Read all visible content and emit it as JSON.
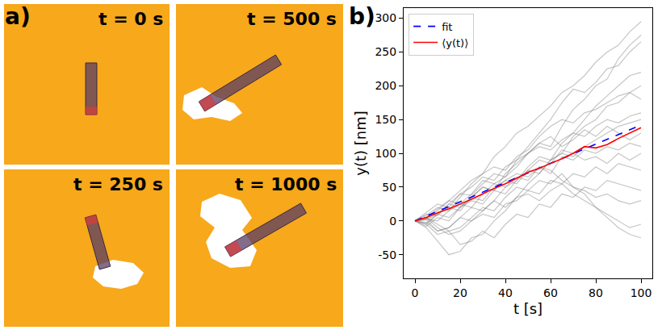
{
  "panel_labels": [
    "a)",
    "b)"
  ],
  "snapshots": [
    {
      "label": "t = 0 s"
    },
    {
      "label": "t = 500 s"
    },
    {
      "label": "t = 250 s"
    },
    {
      "label": "t = 1000 s"
    }
  ],
  "chart_data": {
    "type": "line",
    "x_label": "t [s]",
    "y_label": "y(t) [nm]",
    "xlim": [
      -5,
      105
    ],
    "ylim": [
      -85,
      315
    ],
    "xticks": [
      0,
      20,
      40,
      60,
      80,
      100
    ],
    "yticks": [
      -50,
      0,
      50,
      100,
      150,
      200,
      250,
      300
    ],
    "grid": false,
    "legend": "upper left",
    "x": [
      0,
      5,
      10,
      15,
      20,
      25,
      30,
      35,
      40,
      45,
      50,
      55,
      60,
      65,
      70,
      75,
      80,
      85,
      90,
      95,
      100
    ],
    "series": [
      {
        "name": "fit",
        "color": "blue",
        "line_style": "dashed",
        "x": [
          0,
          100
        ],
        "values": [
          0,
          142
        ]
      },
      {
        "name": "⟨y(t)⟩",
        "color": "red",
        "line_style": "solid",
        "values": [
          0,
          5,
          12,
          18,
          25,
          32,
          40,
          48,
          55,
          63,
          72,
          78,
          85,
          92,
          100,
          110,
          108,
          113,
          122,
          130,
          138
        ]
      },
      {
        "color": "gray",
        "line_style": "solid",
        "values": [
          0,
          5,
          18,
          30,
          45,
          60,
          70,
          95,
          110,
          130,
          140,
          155,
          170,
          190,
          200,
          215,
          235,
          250,
          260,
          280,
          295
        ]
      },
      {
        "color": "gray",
        "line_style": "solid",
        "values": [
          0,
          -5,
          10,
          20,
          15,
          35,
          50,
          45,
          70,
          85,
          100,
          115,
          110,
          140,
          165,
          180,
          200,
          210,
          240,
          260,
          275
        ]
      },
      {
        "color": "gray",
        "line_style": "solid",
        "values": [
          0,
          10,
          8,
          25,
          40,
          38,
          55,
          70,
          65,
          90,
          110,
          130,
          150,
          175,
          195,
          190,
          205,
          225,
          230,
          250,
          265
        ]
      },
      {
        "color": "gray",
        "line_style": "solid",
        "values": [
          0,
          2,
          -15,
          -10,
          5,
          20,
          15,
          30,
          50,
          60,
          80,
          95,
          90,
          115,
          130,
          150,
          170,
          185,
          200,
          215,
          220
        ]
      },
      {
        "color": "gray",
        "line_style": "solid",
        "values": [
          0,
          -10,
          -30,
          -50,
          -45,
          -25,
          -20,
          0,
          15,
          35,
          55,
          70,
          90,
          100,
          125,
          140,
          150,
          170,
          175,
          190,
          200
        ]
      },
      {
        "color": "gray",
        "line_style": "solid",
        "values": [
          0,
          8,
          20,
          15,
          35,
          55,
          70,
          80,
          75,
          95,
          105,
          125,
          140,
          150,
          145,
          160,
          165,
          175,
          185,
          190,
          180
        ]
      },
      {
        "color": "gray",
        "line_style": "solid",
        "values": [
          0,
          5,
          15,
          30,
          25,
          40,
          60,
          55,
          65,
          80,
          100,
          110,
          105,
          120,
          130,
          125,
          140,
          150,
          145,
          155,
          160
        ]
      },
      {
        "color": "gray",
        "line_style": "solid",
        "values": [
          0,
          -8,
          5,
          0,
          20,
          30,
          25,
          45,
          40,
          60,
          75,
          70,
          90,
          100,
          95,
          110,
          120,
          130,
          140,
          145,
          150
        ]
      },
      {
        "color": "gray",
        "line_style": "solid",
        "values": [
          0,
          12,
          25,
          20,
          40,
          50,
          65,
          60,
          80,
          90,
          100,
          115,
          125,
          110,
          120,
          135,
          125,
          140,
          130,
          120,
          130
        ]
      },
      {
        "color": "gray",
        "line_style": "solid",
        "values": [
          0,
          3,
          0,
          15,
          25,
          20,
          40,
          55,
          50,
          65,
          60,
          80,
          70,
          95,
          90,
          105,
          100,
          110,
          105,
          115,
          110
        ]
      },
      {
        "color": "gray",
        "line_style": "solid",
        "values": [
          0,
          -3,
          10,
          5,
          20,
          35,
          30,
          50,
          60,
          55,
          75,
          90,
          85,
          105,
          100,
          90,
          95,
          85,
          100,
          90,
          100
        ]
      },
      {
        "color": "gray",
        "line_style": "solid",
        "values": [
          0,
          5,
          -10,
          -20,
          -15,
          0,
          10,
          5,
          25,
          30,
          45,
          40,
          60,
          55,
          70,
          65,
          80,
          70,
          85,
          80,
          75
        ]
      },
      {
        "color": "gray",
        "line_style": "solid",
        "values": [
          0,
          -5,
          -20,
          -15,
          -35,
          -30,
          -15,
          -25,
          -5,
          10,
          5,
          25,
          20,
          40,
          35,
          50,
          45,
          60,
          55,
          50,
          45
        ]
      },
      {
        "color": "gray",
        "line_style": "solid",
        "values": [
          0,
          2,
          10,
          25,
          20,
          35,
          50,
          45,
          60,
          70,
          65,
          80,
          75,
          60,
          50,
          45,
          35,
          40,
          30,
          25,
          30
        ]
      },
      {
        "color": "gray",
        "line_style": "solid",
        "values": [
          0,
          -2,
          -15,
          -10,
          5,
          0,
          15,
          30,
          20,
          35,
          40,
          30,
          45,
          55,
          40,
          30,
          20,
          5,
          -10,
          -20,
          -25
        ]
      },
      {
        "color": "gray",
        "line_style": "solid",
        "values": [
          0,
          5,
          -5,
          -15,
          -10,
          5,
          20,
          15,
          35,
          50,
          45,
          60,
          55,
          70,
          50,
          40,
          20,
          10,
          0,
          -10,
          -5
        ]
      }
    ]
  }
}
